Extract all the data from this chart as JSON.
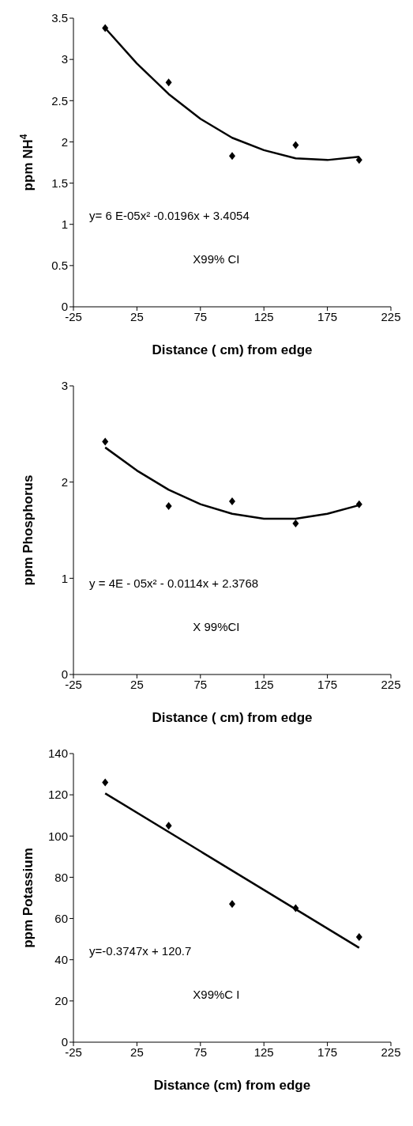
{
  "chart_data": [
    {
      "type": "scatter",
      "ylabel": "ppm NH$^{4}$",
      "xlabel": "Distance ( cm) from edge",
      "xlim": [
        -25,
        225
      ],
      "xticks": [
        -25,
        25,
        75,
        125,
        175,
        225
      ],
      "ylim": [
        0,
        3.5
      ],
      "yticks": [
        0,
        0.5,
        1,
        1.5,
        2,
        2.5,
        3,
        3.5
      ],
      "grid": false,
      "annotations": [
        "y= 6 E-05x² -0.0196x + 3.4054",
        "X99% CI"
      ],
      "series": [
        {
          "color": "#000000",
          "marker": "diamond",
          "x": [
            0,
            50,
            100,
            150,
            200
          ],
          "values": [
            3.38,
            2.72,
            1.83,
            1.96,
            1.78
          ]
        },
        {
          "type": "line",
          "color": "#000000",
          "marker": "none",
          "line_style": "solid",
          "x": [
            0,
            25,
            50,
            75,
            100,
            125,
            150,
            175,
            200
          ],
          "values": [
            3.38,
            2.95,
            2.58,
            2.28,
            2.05,
            1.9,
            1.8,
            1.78,
            1.82
          ]
        }
      ]
    },
    {
      "type": "scatter",
      "ylabel": "ppm Phosphorus",
      "xlabel": "Distance ( cm) from edge",
      "xlim": [
        -25,
        225
      ],
      "xticks": [
        -25,
        25,
        75,
        125,
        175,
        225
      ],
      "ylim": [
        0,
        3
      ],
      "yticks": [
        0,
        1,
        2,
        3
      ],
      "grid": false,
      "annotations": [
        "y = 4E - 05x² - 0.0114x + 2.3768",
        "X 99%CI"
      ],
      "series": [
        {
          "color": "#000000",
          "marker": "diamond",
          "x": [
            0,
            50,
            100,
            150,
            200
          ],
          "values": [
            2.42,
            1.75,
            1.8,
            1.57,
            1.77
          ]
        },
        {
          "type": "line",
          "color": "#000000",
          "marker": "none",
          "line_style": "solid",
          "x": [
            0,
            25,
            50,
            75,
            100,
            125,
            150,
            175,
            200
          ],
          "values": [
            2.36,
            2.12,
            1.92,
            1.77,
            1.67,
            1.62,
            1.62,
            1.67,
            1.76
          ]
        }
      ]
    },
    {
      "type": "scatter",
      "ylabel": "ppm Potassium",
      "xlabel": "Distance (cm) from edge",
      "xlim": [
        -25,
        225
      ],
      "xticks": [
        -25,
        25,
        75,
        125,
        175,
        225
      ],
      "ylim": [
        0,
        140
      ],
      "yticks": [
        0,
        20,
        40,
        60,
        80,
        100,
        120,
        140
      ],
      "grid": false,
      "annotations": [
        "y=-0.3747x + 120.7",
        "X99%C I"
      ],
      "series": [
        {
          "color": "#000000",
          "marker": "diamond",
          "x": [
            0,
            50,
            100,
            150,
            200
          ],
          "values": [
            126,
            105,
            67,
            65,
            51
          ]
        },
        {
          "type": "line",
          "color": "#000000",
          "marker": "none",
          "line_style": "solid",
          "x": [
            0,
            200
          ],
          "values": [
            120.7,
            45.8
          ]
        }
      ]
    }
  ]
}
